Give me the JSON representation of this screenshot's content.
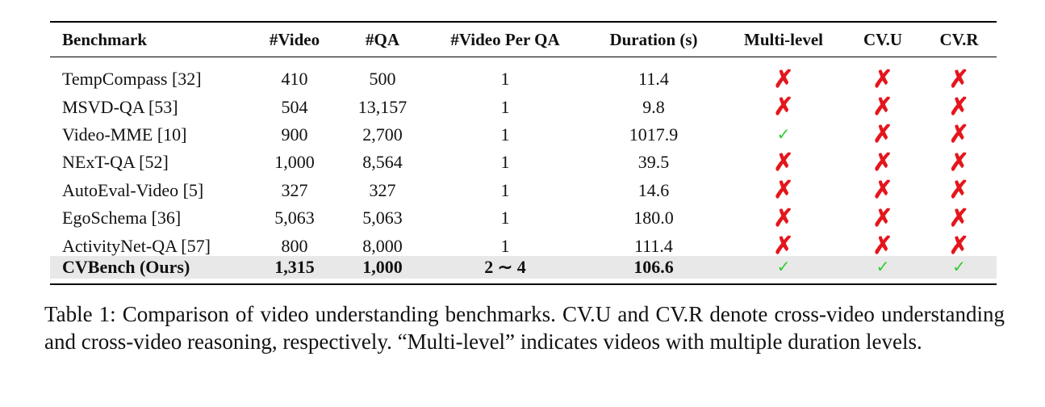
{
  "table": {
    "header": [
      "Benchmark",
      "#Video",
      "#QA",
      "#Video Per QA",
      "Duration (s)",
      "Multi-level",
      "CV.U",
      "CV.R"
    ],
    "symbols": [
      {
        "text": "✗",
        "color": "#e4161c"
      },
      {
        "text": "✓",
        "color": "#2fcc2f"
      }
    ],
    "rows": [
      {
        "cells": [
          "TempCompass [32]",
          "410",
          "500",
          "1",
          "11.4",
          "✗",
          "✗",
          "✗"
        ]
      },
      {
        "cells": [
          "MSVD-QA [53]",
          "504",
          "13,157",
          "1",
          "9.8",
          "✗",
          "✗",
          "✗"
        ]
      },
      {
        "cells": [
          "Video-MME [10]",
          "900",
          "2,700",
          "1",
          "1017.9",
          "✓",
          "✗",
          "✗"
        ]
      },
      {
        "cells": [
          "NExT-QA [52]",
          "1,000",
          "8,564",
          "1",
          "39.5",
          "✗",
          "✗",
          "✗"
        ]
      },
      {
        "cells": [
          "AutoEval-Video [5]",
          "327",
          "327",
          "1",
          "14.6",
          "✗",
          "✗",
          "✗"
        ]
      },
      {
        "cells": [
          "EgoSchema [36]",
          "5,063",
          "5,063",
          "1",
          "180.0",
          "✗",
          "✗",
          "✗"
        ]
      },
      {
        "cells": [
          "ActivityNet-QA [57]",
          "800",
          "8,000",
          "1",
          "111.4",
          "✗",
          "✗",
          "✗"
        ]
      },
      {
        "cells": [
          "CVBench (Ours)",
          "1,315",
          "1,000",
          "2 ∼ 4",
          "106.6",
          "✓",
          "✓",
          "✓"
        ],
        "highlight": true
      }
    ]
  },
  "caption": "Table 1: Comparison of video understanding benchmarks. CV.U and CV.R denote cross-video understanding and cross-video reasoning, respectively. “Multi-level” indicates videos with multiple duration levels."
}
